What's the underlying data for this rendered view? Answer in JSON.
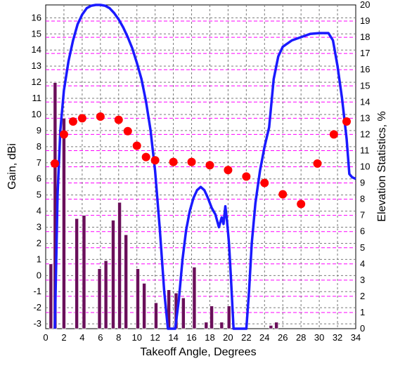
{
  "chart_data": {
    "type": "combo",
    "xlabel": "Takeoff Angle, Degrees",
    "ylabel": "Gain, dBi",
    "y2label": "Elevation Statistics, %",
    "xlim": [
      0,
      34
    ],
    "ylim": [
      -3.3,
      16.8
    ],
    "y2lim": [
      0,
      20
    ],
    "grid": true,
    "x_ticks": [
      "0",
      "2",
      "4",
      "6",
      "8",
      "10",
      "12",
      "14",
      "16",
      "18",
      "20",
      "22",
      "24",
      "26",
      "28",
      "30",
      "32",
      "34"
    ],
    "y_ticks": [
      "-3",
      "-2",
      "-1",
      "0",
      "1",
      "2",
      "3",
      "4",
      "5",
      "6",
      "7",
      "8",
      "9",
      "10",
      "11",
      "12",
      "13",
      "14",
      "15",
      "16"
    ],
    "y2_ticks": [
      "0",
      "1",
      "2",
      "3",
      "4",
      "5",
      "6",
      "7",
      "8",
      "9",
      "10",
      "11",
      "12",
      "13",
      "14",
      "15",
      "16",
      "17",
      "18",
      "19",
      "20"
    ],
    "colors": {
      "gain_line": "#1a1aff",
      "bars": "#6a0f5a",
      "bar_edge": "#ffffff",
      "dots": "#ff0000",
      "major_grid": "#7a7a7a",
      "minor_grid": "#ff00ff"
    },
    "gain_series": {
      "x": [
        1.0,
        1.3,
        1.6,
        2.0,
        2.5,
        3.0,
        3.5,
        4.0,
        4.5,
        5.0,
        5.5,
        6.0,
        6.5,
        7.0,
        7.5,
        8.0,
        8.5,
        9.0,
        9.5,
        10.0,
        10.5,
        11.0,
        11.5,
        12.0,
        12.5,
        13.0,
        13.4,
        13.8,
        14.2,
        14.6,
        15.0,
        15.4,
        15.8,
        16.2,
        16.6,
        17.0,
        17.4,
        17.8,
        18.2,
        18.6,
        19.0,
        19.3,
        19.5,
        19.7,
        19.9,
        20.1,
        20.3,
        20.6,
        20.9,
        21.3,
        21.7,
        22.0,
        22.3,
        22.6,
        23.0,
        23.5,
        24.0,
        24.5,
        25.0,
        25.5,
        26.0,
        27.0,
        28.0,
        29.0,
        30.0,
        30.5,
        31.0,
        31.5,
        32.0,
        32.5,
        33.0,
        33.3,
        33.6,
        34.0
      ],
      "y": [
        -3.3,
        5.0,
        9.0,
        11.5,
        13.3,
        14.6,
        15.6,
        16.2,
        16.6,
        16.75,
        16.8,
        16.8,
        16.75,
        16.6,
        16.3,
        15.9,
        15.4,
        14.8,
        14.1,
        13.2,
        12.2,
        10.8,
        9.0,
        6.5,
        3.0,
        -1.0,
        -3.3,
        -3.3,
        -3.3,
        -1.5,
        1.0,
        2.8,
        4.0,
        4.8,
        5.3,
        5.5,
        5.3,
        4.8,
        4.2,
        3.8,
        3.0,
        3.6,
        3.2,
        4.3,
        3.3,
        2.0,
        0.0,
        -3.3,
        -3.3,
        -3.3,
        -3.3,
        -3.3,
        -1.0,
        2.0,
        4.5,
        6.5,
        8.0,
        9.2,
        12.2,
        13.6,
        14.2,
        14.6,
        14.8,
        15.0,
        15.05,
        15.05,
        15.05,
        14.6,
        13.0,
        11.0,
        8.5,
        6.3,
        6.1,
        6.0
      ]
    },
    "elevation_stats_bars": [
      {
        "x": 0.8,
        "values": [
          4.0,
          15.2
        ]
      },
      {
        "x": 2.0,
        "values": [
          13.0
        ]
      },
      {
        "x": 3.4,
        "values": [
          6.8
        ]
      },
      {
        "x": 4.2,
        "values": [
          7.0
        ]
      },
      {
        "x": 5.9,
        "values": [
          3.7
        ]
      },
      {
        "x": 6.6,
        "values": [
          4.2
        ]
      },
      {
        "x": 7.4,
        "values": [
          6.7
        ]
      },
      {
        "x": 8.1,
        "values": [
          7.8
        ]
      },
      {
        "x": 8.8,
        "values": [
          5.8
        ]
      },
      {
        "x": 10.1,
        "values": [
          3.7
        ]
      },
      {
        "x": 10.8,
        "values": [
          2.8
        ]
      },
      {
        "x": 12.1,
        "values": [
          1.6
        ]
      },
      {
        "x": 13.5,
        "values": [
          2.4
        ]
      },
      {
        "x": 14.3,
        "values": [
          2.2
        ]
      },
      {
        "x": 15.1,
        "values": [
          1.9
        ]
      },
      {
        "x": 16.3,
        "values": [
          3.8
        ]
      },
      {
        "x": 17.6,
        "values": [
          0.4
        ]
      },
      {
        "x": 18.2,
        "values": [
          1.4
        ]
      },
      {
        "x": 19.3,
        "values": [
          0.4
        ]
      },
      {
        "x": 20.1,
        "values": [
          1.4
        ]
      },
      {
        "x": 24.7,
        "values": [
          0.2
        ]
      },
      {
        "x": 25.3,
        "values": [
          0.4
        ]
      }
    ],
    "elevation_stats_dots": {
      "x": [
        1.0,
        2.0,
        3.0,
        4.0,
        6.0,
        8.0,
        9.0,
        10.0,
        11.0,
        12.0,
        14.0,
        16.0,
        18.0,
        20.0,
        22.0,
        24.0,
        26.0,
        28.0,
        29.8,
        31.6,
        33.0
      ],
      "y": [
        10.2,
        12.0,
        12.8,
        13.0,
        13.1,
        12.9,
        12.2,
        11.3,
        10.6,
        10.4,
        10.3,
        10.3,
        10.1,
        9.8,
        9.4,
        9.0,
        8.3,
        7.7,
        10.2,
        12.0,
        12.8
      ]
    }
  }
}
